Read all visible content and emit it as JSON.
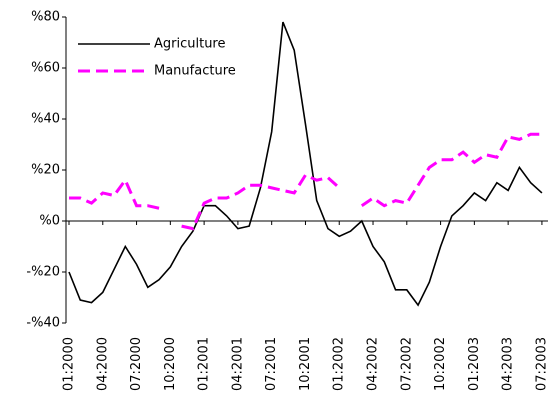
{
  "chart_data": {
    "type": "line",
    "categories": [
      "01:2000",
      null,
      null,
      "04:2000",
      null,
      null,
      "07:2000",
      null,
      null,
      "10:2000",
      null,
      null,
      "01:2001",
      null,
      null,
      "04:2001",
      null,
      null,
      "07:2001",
      null,
      null,
      "10:2001",
      null,
      null,
      "01:2002",
      null,
      null,
      "04:2002",
      null,
      null,
      "07:2002",
      null,
      null,
      "10:2002",
      null,
      null,
      "01:2003",
      null,
      null,
      "04:2003",
      null,
      null,
      "07:2003"
    ],
    "series": [
      {
        "name": "Agriculture",
        "color": "#000000",
        "dashed": false,
        "values": [
          -20,
          -31,
          -32,
          -28,
          -19,
          -10,
          -17,
          -26,
          -23,
          -18,
          -10,
          -4,
          6,
          6,
          2,
          -3,
          -2,
          13,
          35,
          78,
          67,
          38,
          8,
          -3,
          -6,
          -4,
          0,
          -10,
          -16,
          -27,
          -27,
          -33,
          -24,
          -10,
          2,
          6,
          11,
          8,
          15,
          12,
          21,
          15,
          11
        ]
      },
      {
        "name": "Manufacture",
        "color": "#ff00ff",
        "dashed": true,
        "values": [
          9,
          9,
          7,
          11,
          10,
          16,
          6,
          6,
          5,
          null,
          -2,
          -3,
          7,
          9,
          9,
          11,
          14,
          14,
          13,
          12,
          11,
          18,
          16,
          17,
          13,
          null,
          6,
          9,
          6,
          8,
          7,
          14,
          21,
          24,
          24,
          27,
          23,
          26,
          25,
          33,
          32,
          34,
          34
        ]
      }
    ],
    "ylim": [
      -40,
      80
    ],
    "yticks": [
      {
        "value": -40,
        "label": "-%40"
      },
      {
        "value": -20,
        "label": "-%20"
      },
      {
        "value": 0,
        "label": "%0"
      },
      {
        "value": 20,
        "label": "%20"
      },
      {
        "value": 40,
        "label": "%40"
      },
      {
        "value": 60,
        "label": "%60"
      },
      {
        "value": 80,
        "label": "%80"
      }
    ],
    "legend": "upper left"
  }
}
